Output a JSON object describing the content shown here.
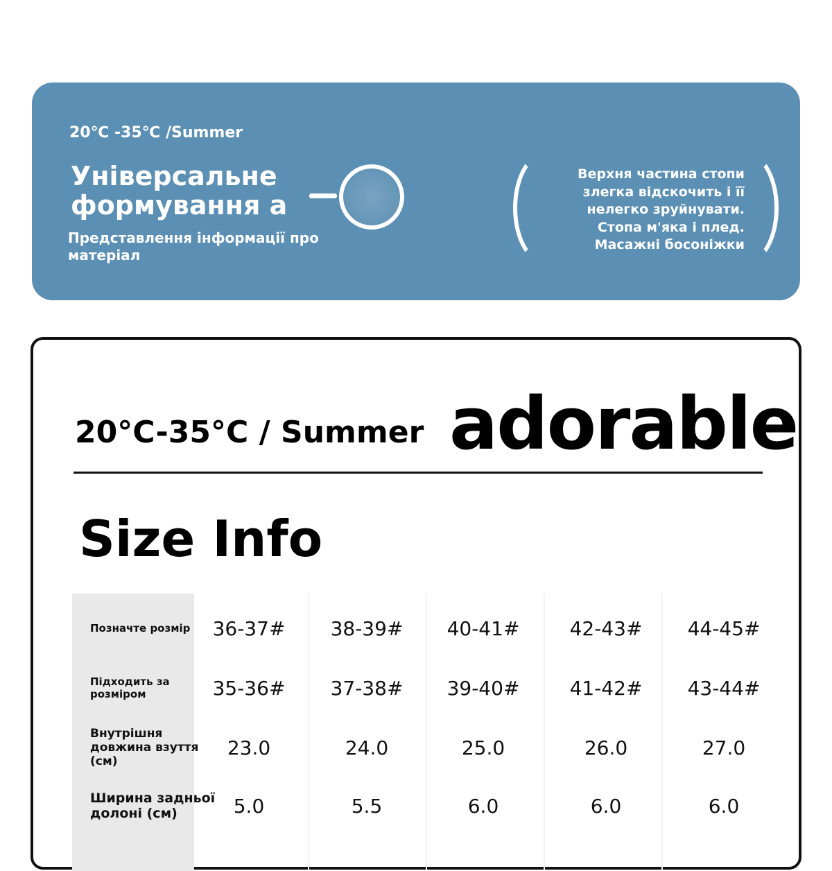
{
  "banner": {
    "temp": "20℃ -35℃ /Summer",
    "title_line1": "Універсальне",
    "title_line2": "формування а",
    "subtitle": "Представлення інформації про матеріал",
    "description": [
      "Верхня частина стопи",
      "злегка відскочить і її",
      "нелегко зруйнувати.",
      "Стопа м'яка і плед.",
      "Масажні босоніжки"
    ],
    "color": "#5b8fb3"
  },
  "card": {
    "temp": "20°C-35°C / Summer",
    "brand": "adorable",
    "heading": "Size Info"
  },
  "table": {
    "rows": [
      {
        "label": "Позначте розмір",
        "values": [
          "36-37#",
          "38-39#",
          "40-41#",
          "42-43#",
          "44-45#"
        ]
      },
      {
        "label": "Підходить за розміром",
        "values": [
          "35-36#",
          "37-38#",
          "39-40#",
          "41-42#",
          "43-44#"
        ]
      },
      {
        "label": "Внутрішня довжина взуття (см)",
        "values": [
          "23.0",
          "24.0",
          "25.0",
          "26.0",
          "27.0"
        ]
      },
      {
        "label": "Ширина задньої долоні (см)",
        "values": [
          "5.0",
          "5.5",
          "6.0",
          "6.0",
          "6.0"
        ]
      }
    ]
  }
}
